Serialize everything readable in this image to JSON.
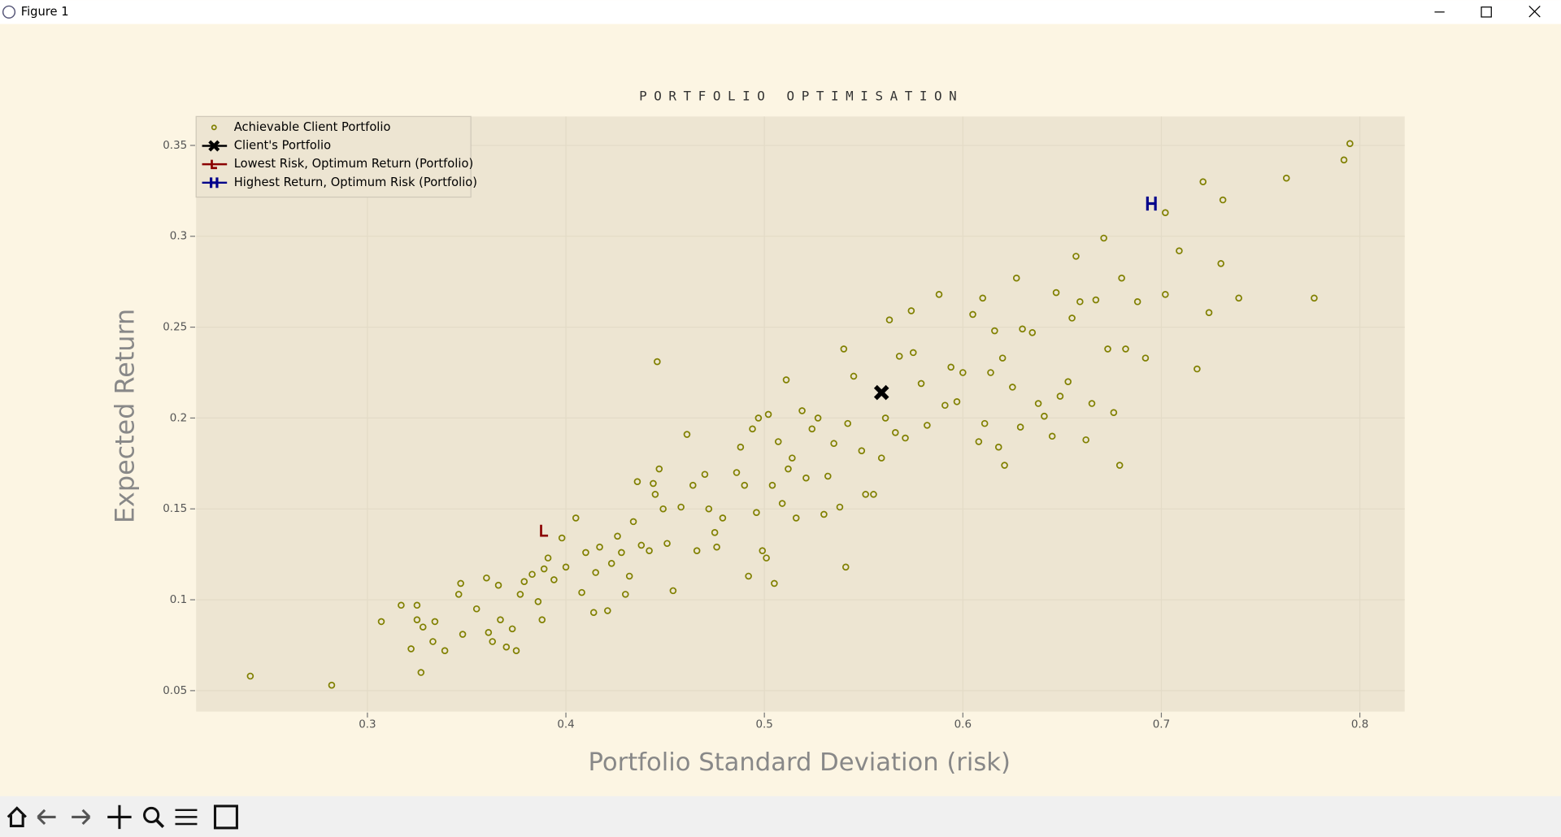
{
  "window": {
    "title": "Figure 1"
  },
  "chart_data": {
    "type": "scatter",
    "title": "PORTFOLIO OPTIMISATION",
    "x_label": "Portfolio Standard Deviation (risk)",
    "y_label": "Expected Return",
    "xlim": [
      0.2137,
      0.8226
    ],
    "ylim": [
      0.0385,
      0.3659
    ],
    "xticks": [
      0.3,
      0.4,
      0.5,
      0.6,
      0.7,
      0.8
    ],
    "yticks": [
      0.05,
      0.1,
      0.15,
      0.2,
      0.25,
      0.3,
      0.35
    ],
    "grid": true,
    "legend": "upper left",
    "series": [
      {
        "name": "Achievable Client Portfolio",
        "color": "#808000",
        "marker": "o",
        "x": [
          0.241,
          0.282,
          0.307,
          0.317,
          0.325,
          0.325,
          0.328,
          0.322,
          0.327,
          0.334,
          0.339,
          0.333,
          0.346,
          0.347,
          0.348,
          0.355,
          0.36,
          0.361,
          0.363,
          0.366,
          0.367,
          0.37,
          0.373,
          0.375,
          0.377,
          0.379,
          0.383,
          0.386,
          0.388,
          0.389,
          0.391,
          0.394,
          0.398,
          0.4,
          0.405,
          0.408,
          0.41,
          0.414,
          0.415,
          0.417,
          0.421,
          0.423,
          0.426,
          0.428,
          0.43,
          0.432,
          0.434,
          0.436,
          0.438,
          0.442,
          0.444,
          0.445,
          0.446,
          0.447,
          0.449,
          0.451,
          0.454,
          0.458,
          0.461,
          0.464,
          0.466,
          0.47,
          0.472,
          0.475,
          0.476,
          0.479,
          0.486,
          0.488,
          0.49,
          0.492,
          0.494,
          0.496,
          0.497,
          0.499,
          0.501,
          0.502,
          0.504,
          0.505,
          0.507,
          0.509,
          0.511,
          0.512,
          0.514,
          0.516,
          0.519,
          0.521,
          0.524,
          0.527,
          0.53,
          0.532,
          0.535,
          0.538,
          0.54,
          0.541,
          0.542,
          0.545,
          0.549,
          0.551,
          0.555,
          0.559,
          0.561,
          0.563,
          0.566,
          0.568,
          0.571,
          0.574,
          0.575,
          0.579,
          0.582,
          0.588,
          0.591,
          0.594,
          0.597,
          0.6,
          0.605,
          0.608,
          0.61,
          0.611,
          0.614,
          0.616,
          0.618,
          0.62,
          0.621,
          0.625,
          0.627,
          0.629,
          0.63,
          0.635,
          0.638,
          0.641,
          0.645,
          0.647,
          0.649,
          0.653,
          0.655,
          0.657,
          0.659,
          0.662,
          0.665,
          0.667,
          0.671,
          0.673,
          0.676,
          0.679,
          0.68,
          0.682,
          0.688,
          0.692,
          0.702,
          0.702,
          0.709,
          0.718,
          0.721,
          0.724,
          0.731,
          0.73,
          0.739,
          0.763,
          0.777,
          0.792,
          0.795
        ],
        "values": [
          0.058,
          0.053,
          0.088,
          0.097,
          0.097,
          0.089,
          0.085,
          0.073,
          0.06,
          0.088,
          0.072,
          0.077,
          0.103,
          0.109,
          0.081,
          0.095,
          0.112,
          0.082,
          0.077,
          0.108,
          0.089,
          0.074,
          0.084,
          0.072,
          0.103,
          0.11,
          0.114,
          0.099,
          0.089,
          0.117,
          0.123,
          0.111,
          0.134,
          0.118,
          0.145,
          0.104,
          0.126,
          0.093,
          0.115,
          0.129,
          0.094,
          0.12,
          0.135,
          0.126,
          0.103,
          0.113,
          0.143,
          0.165,
          0.13,
          0.127,
          0.164,
          0.158,
          0.231,
          0.172,
          0.15,
          0.131,
          0.105,
          0.151,
          0.191,
          0.163,
          0.127,
          0.169,
          0.15,
          0.137,
          0.129,
          0.145,
          0.17,
          0.184,
          0.163,
          0.113,
          0.194,
          0.148,
          0.2,
          0.127,
          0.123,
          0.202,
          0.163,
          0.109,
          0.187,
          0.153,
          0.221,
          0.172,
          0.178,
          0.145,
          0.204,
          0.167,
          0.194,
          0.2,
          0.147,
          0.168,
          0.186,
          0.151,
          0.238,
          0.118,
          0.197,
          0.223,
          0.182,
          0.158,
          0.158,
          0.178,
          0.2,
          0.254,
          0.192,
          0.234,
          0.189,
          0.259,
          0.236,
          0.219,
          0.196,
          0.268,
          0.207,
          0.228,
          0.209,
          0.225,
          0.257,
          0.187,
          0.266,
          0.197,
          0.225,
          0.248,
          0.184,
          0.233,
          0.174,
          0.217,
          0.277,
          0.195,
          0.249,
          0.247,
          0.208,
          0.201,
          0.19,
          0.269,
          0.212,
          0.22,
          0.255,
          0.289,
          0.264,
          0.188,
          0.208,
          0.265,
          0.299,
          0.238,
          0.203,
          0.174,
          0.277,
          0.238,
          0.264,
          0.233,
          0.268,
          0.313,
          0.292,
          0.227,
          0.33,
          0.258,
          0.32,
          0.285,
          0.266,
          0.332,
          0.266,
          0.342,
          0.351
        ]
      },
      {
        "name": "Client's Portfolio",
        "color": "#000000",
        "marker": "X",
        "x": [
          0.559
        ],
        "values": [
          0.214
        ]
      },
      {
        "name": "Lowest Risk, Optimum Return (Portfolio)",
        "color": "#8b0000",
        "marker": "L",
        "x": [
          0.389
        ],
        "values": [
          0.138
        ]
      },
      {
        "name": "Highest Return, Optimum Risk (Portfolio)",
        "color": "#00008b",
        "marker": "H",
        "x": [
          0.695
        ],
        "values": [
          0.318
        ]
      }
    ]
  }
}
